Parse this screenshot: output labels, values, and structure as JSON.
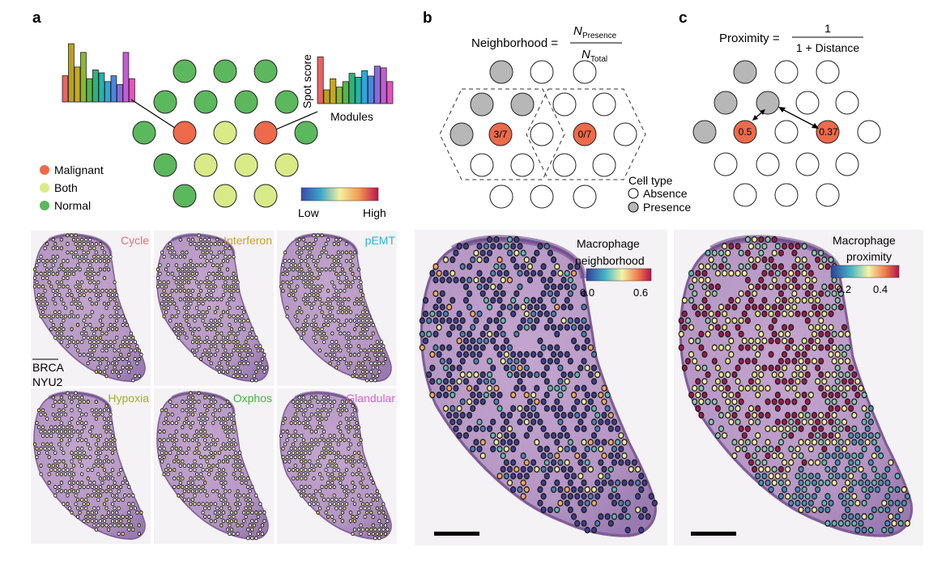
{
  "panels": {
    "a": "a",
    "b": "b",
    "c": "c"
  },
  "panel_a": {
    "spot_score_label": "Spot score",
    "modules_label": "Modules",
    "legend": {
      "malignant": "Malignant",
      "both": "Both",
      "normal": "Normal"
    },
    "colorbar": {
      "low": "Low",
      "high": "High"
    },
    "module_maps": [
      "Cycle",
      "Interferon",
      "pEMT",
      "Hypoxia",
      "Oxphos",
      "Glandular"
    ],
    "sample_line1": "BRCA",
    "sample_line2": "NYU2",
    "module_colors": [
      "#f07070",
      "#c9a227",
      "#29b6d6",
      "#9ab520",
      "#3fb83f",
      "#e060d0"
    ],
    "left_bars": [
      0.45,
      1.0,
      0.6,
      0.85,
      0.4,
      0.55,
      0.5,
      0.35,
      0.45,
      0.3,
      0.85,
      0.4
    ],
    "right_bars": [
      0.85,
      0.25,
      0.45,
      0.3,
      0.4,
      0.55,
      0.48,
      0.6,
      0.5,
      0.68,
      0.65,
      0.4
    ]
  },
  "panel_b": {
    "formula_lhs": "Neighborhood =",
    "numerator_N": "N",
    "numerator_sub": "Presence",
    "denominator_N": "N",
    "denominator_sub": "Total",
    "spot1_label": "3/7",
    "spot2_label": "0/7",
    "cell_type_title": "Cell type",
    "absence_label": "Absence",
    "presence_label": "Presence",
    "map_title_line1": "Macrophage",
    "map_title_line2": "neighborhood",
    "colorbar_min": "0.0",
    "colorbar_max": "0.6"
  },
  "panel_c": {
    "formula_lhs": "Proximity =",
    "numerator": "1",
    "denominator": "1 + Distance",
    "spot1_label": "0.5",
    "spot2_label": "0.37",
    "map_title_line1": "Macrophage",
    "map_title_line2": "proximity",
    "colorbar_min": "0.2",
    "colorbar_max": "0.4"
  },
  "colors": {
    "malignant": "#ee6a4a",
    "both": "#d9ea88",
    "normal": "#5cb85c",
    "presence": "#b7b7b7",
    "absence": "#ffffff",
    "tissue": "#b79ac2",
    "tissue_dark": "#7f5d98"
  }
}
